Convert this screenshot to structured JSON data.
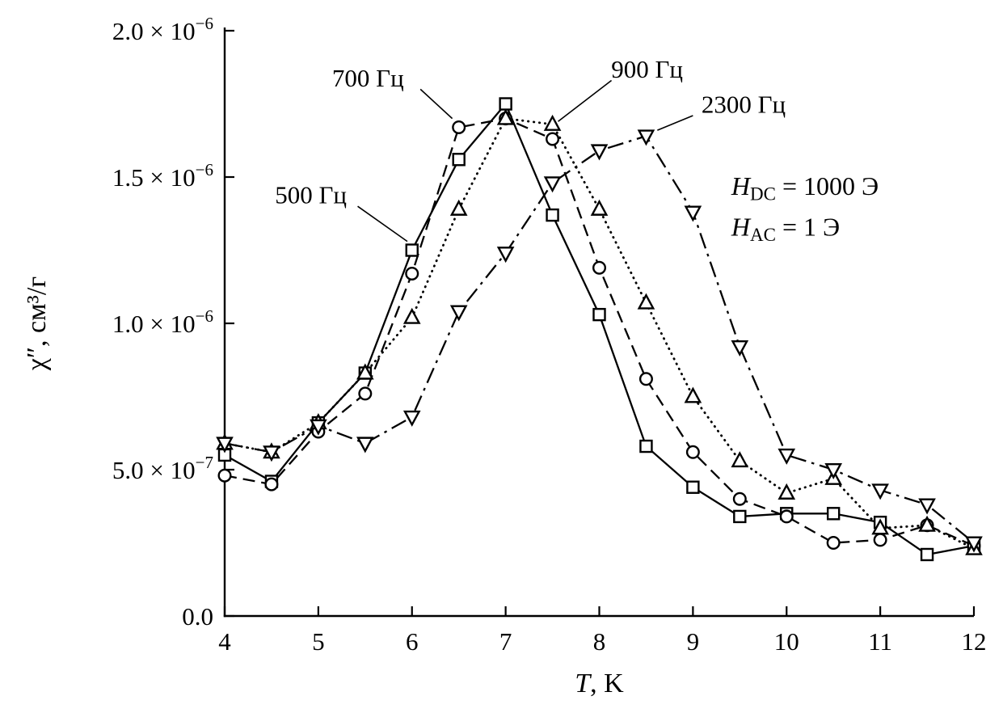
{
  "chart_data": {
    "type": "line",
    "title": "",
    "foreground": "#000000",
    "background": "#ffffff",
    "xlabel_parts": [
      {
        "text": "T",
        "italic": true
      },
      {
        "text": ", K"
      }
    ],
    "ylabel": "χ″, см³/г",
    "xlim": [
      4,
      12
    ],
    "ylim": [
      0,
      2e-06
    ],
    "grid": false,
    "legend_position": "inline-annotations",
    "x_ticks": [
      {
        "value": 4,
        "label": "4"
      },
      {
        "value": 5,
        "label": "5"
      },
      {
        "value": 6,
        "label": "6"
      },
      {
        "value": 7,
        "label": "7"
      },
      {
        "value": 8,
        "label": "8"
      },
      {
        "value": 9,
        "label": "9"
      },
      {
        "value": 10,
        "label": "10"
      },
      {
        "value": 11,
        "label": "11"
      },
      {
        "value": 12,
        "label": "12"
      }
    ],
    "y_ticks": [
      {
        "value": 0,
        "label": "0.0"
      },
      {
        "value": 5e-07,
        "label": "5.0 × 10^{−7}"
      },
      {
        "value": 1e-06,
        "label": "1.0 × 10^{−6}"
      },
      {
        "value": 1.5e-06,
        "label": "1.5 × 10^{−6}"
      },
      {
        "value": 2e-06,
        "label": "2.0 × 10^{−6}"
      }
    ],
    "x": [
      4,
      4.5,
      5,
      5.5,
      6,
      6.5,
      7,
      7.5,
      8,
      8.5,
      9,
      9.5,
      10,
      10.5,
      11,
      11.5,
      12
    ],
    "series": [
      {
        "name": "500 Гц",
        "marker": "square",
        "line": "solid",
        "color": "#000000",
        "values": [
          5.5e-07,
          4.6e-07,
          6.6e-07,
          8.3e-07,
          1.25e-06,
          1.56e-06,
          1.75e-06,
          1.37e-06,
          1.03e-06,
          5.8e-07,
          4.4e-07,
          3.4e-07,
          3.5e-07,
          3.5e-07,
          3.2e-07,
          2.1e-07,
          2.4e-07
        ]
      },
      {
        "name": "700 Гц",
        "marker": "circle",
        "line": "dashed",
        "color": "#000000",
        "values": [
          4.8e-07,
          4.5e-07,
          6.3e-07,
          7.6e-07,
          1.17e-06,
          1.67e-06,
          1.7e-06,
          1.63e-06,
          1.19e-06,
          8.1e-07,
          5.6e-07,
          4e-07,
          3.4e-07,
          2.5e-07,
          2.6e-07,
          3.1e-07,
          2.4e-07
        ]
      },
      {
        "name": "900 Гц",
        "marker": "triangle-up",
        "line": "dotted",
        "color": "#000000",
        "values": [
          5.9e-07,
          5.6e-07,
          6.6e-07,
          8.3e-07,
          1.02e-06,
          1.39e-06,
          1.7e-06,
          1.68e-06,
          1.39e-06,
          1.07e-06,
          7.5e-07,
          5.3e-07,
          4.2e-07,
          4.7e-07,
          3e-07,
          3.1e-07,
          2.3e-07
        ]
      },
      {
        "name": "2300 Гц",
        "marker": "triangle-down",
        "line": "dashdot",
        "color": "#000000",
        "values": [
          5.9e-07,
          5.6e-07,
          6.5e-07,
          5.9e-07,
          6.8e-07,
          1.04e-06,
          1.24e-06,
          1.48e-06,
          1.59e-06,
          1.64e-06,
          1.38e-06,
          9.2e-07,
          5.5e-07,
          5e-07,
          4.3e-07,
          3.8e-07,
          2.5e-07
        ]
      }
    ],
    "annotations": [
      {
        "label": "700 Гц",
        "text_x": 5.53,
        "text_y": 1.84e-06,
        "leader": [
          6.09,
          1.8e-06,
          6.43,
          1.7e-06
        ]
      },
      {
        "label": "900 Гц",
        "text_x": 8.51,
        "text_y": 1.87e-06,
        "leader": [
          8.13,
          1.83e-06,
          7.56,
          1.69e-06
        ]
      },
      {
        "label": "2300 Гц",
        "text_x": 9.54,
        "text_y": 1.75e-06,
        "leader": [
          9.0,
          1.71e-06,
          8.62,
          1.66e-06
        ]
      },
      {
        "label": "500 Гц",
        "text_x": 4.92,
        "text_y": 1.44e-06,
        "leader": [
          5.42,
          1.4e-06,
          5.95,
          1.28e-06
        ]
      }
    ],
    "field_annotations": [
      {
        "x": 9.41,
        "y": 1.47e-06,
        "parts": [
          {
            "text": "H",
            "italic": true
          },
          {
            "text": "DC",
            "sub": true
          },
          {
            "text": " = 1000 Э"
          }
        ]
      },
      {
        "x": 9.41,
        "y": 1.33e-06,
        "parts": [
          {
            "text": "H",
            "italic": true
          },
          {
            "text": "AC",
            "sub": true
          },
          {
            "text": " = 1 Э"
          }
        ]
      }
    ]
  }
}
